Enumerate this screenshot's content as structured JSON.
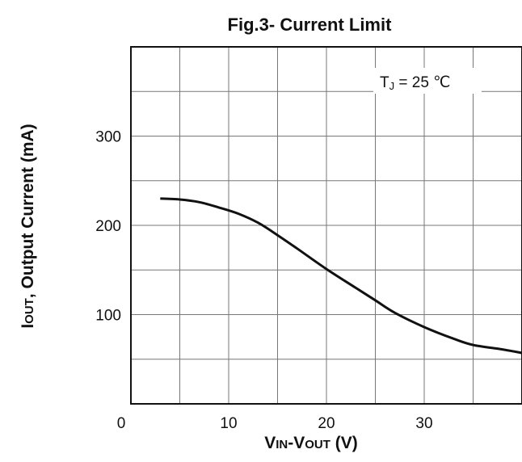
{
  "chart_data": {
    "type": "line",
    "title": "Fig.3- Current Limit",
    "xlabel_main": "V",
    "xlabel_sub1": "IN",
    "xlabel_mid": "-V",
    "xlabel_sub2": "OUT",
    "xlabel_unit": " (V)",
    "ylabel_main": "I",
    "ylabel_sub": "OUT",
    "ylabel_rest": ", Output Current (mA)",
    "xlim": [
      0,
      40
    ],
    "ylim": [
      0,
      400
    ],
    "x_ticks": [
      0,
      10,
      20,
      30
    ],
    "x_tick_labels": [
      "0",
      "10",
      "20",
      "30"
    ],
    "y_ticks": [
      100,
      200,
      300
    ],
    "y_tick_labels": [
      "100",
      "200",
      "300"
    ],
    "x_grid": [
      5,
      10,
      15,
      20,
      25,
      30,
      35
    ],
    "y_grid": [
      50,
      100,
      150,
      200,
      250,
      300,
      350
    ],
    "grid": true,
    "annotation": {
      "symbol": "T",
      "subscript": "J",
      "text": " = 25 ℃"
    },
    "series": [
      {
        "x": [
          3,
          5,
          7,
          9,
          11,
          13,
          15,
          17,
          20,
          23,
          25,
          27,
          30,
          33,
          35,
          38,
          40
        ],
        "y": [
          230,
          229,
          226,
          220,
          213,
          203,
          189,
          174,
          151,
          130,
          116,
          102,
          86,
          73,
          66,
          61,
          57
        ]
      }
    ]
  }
}
